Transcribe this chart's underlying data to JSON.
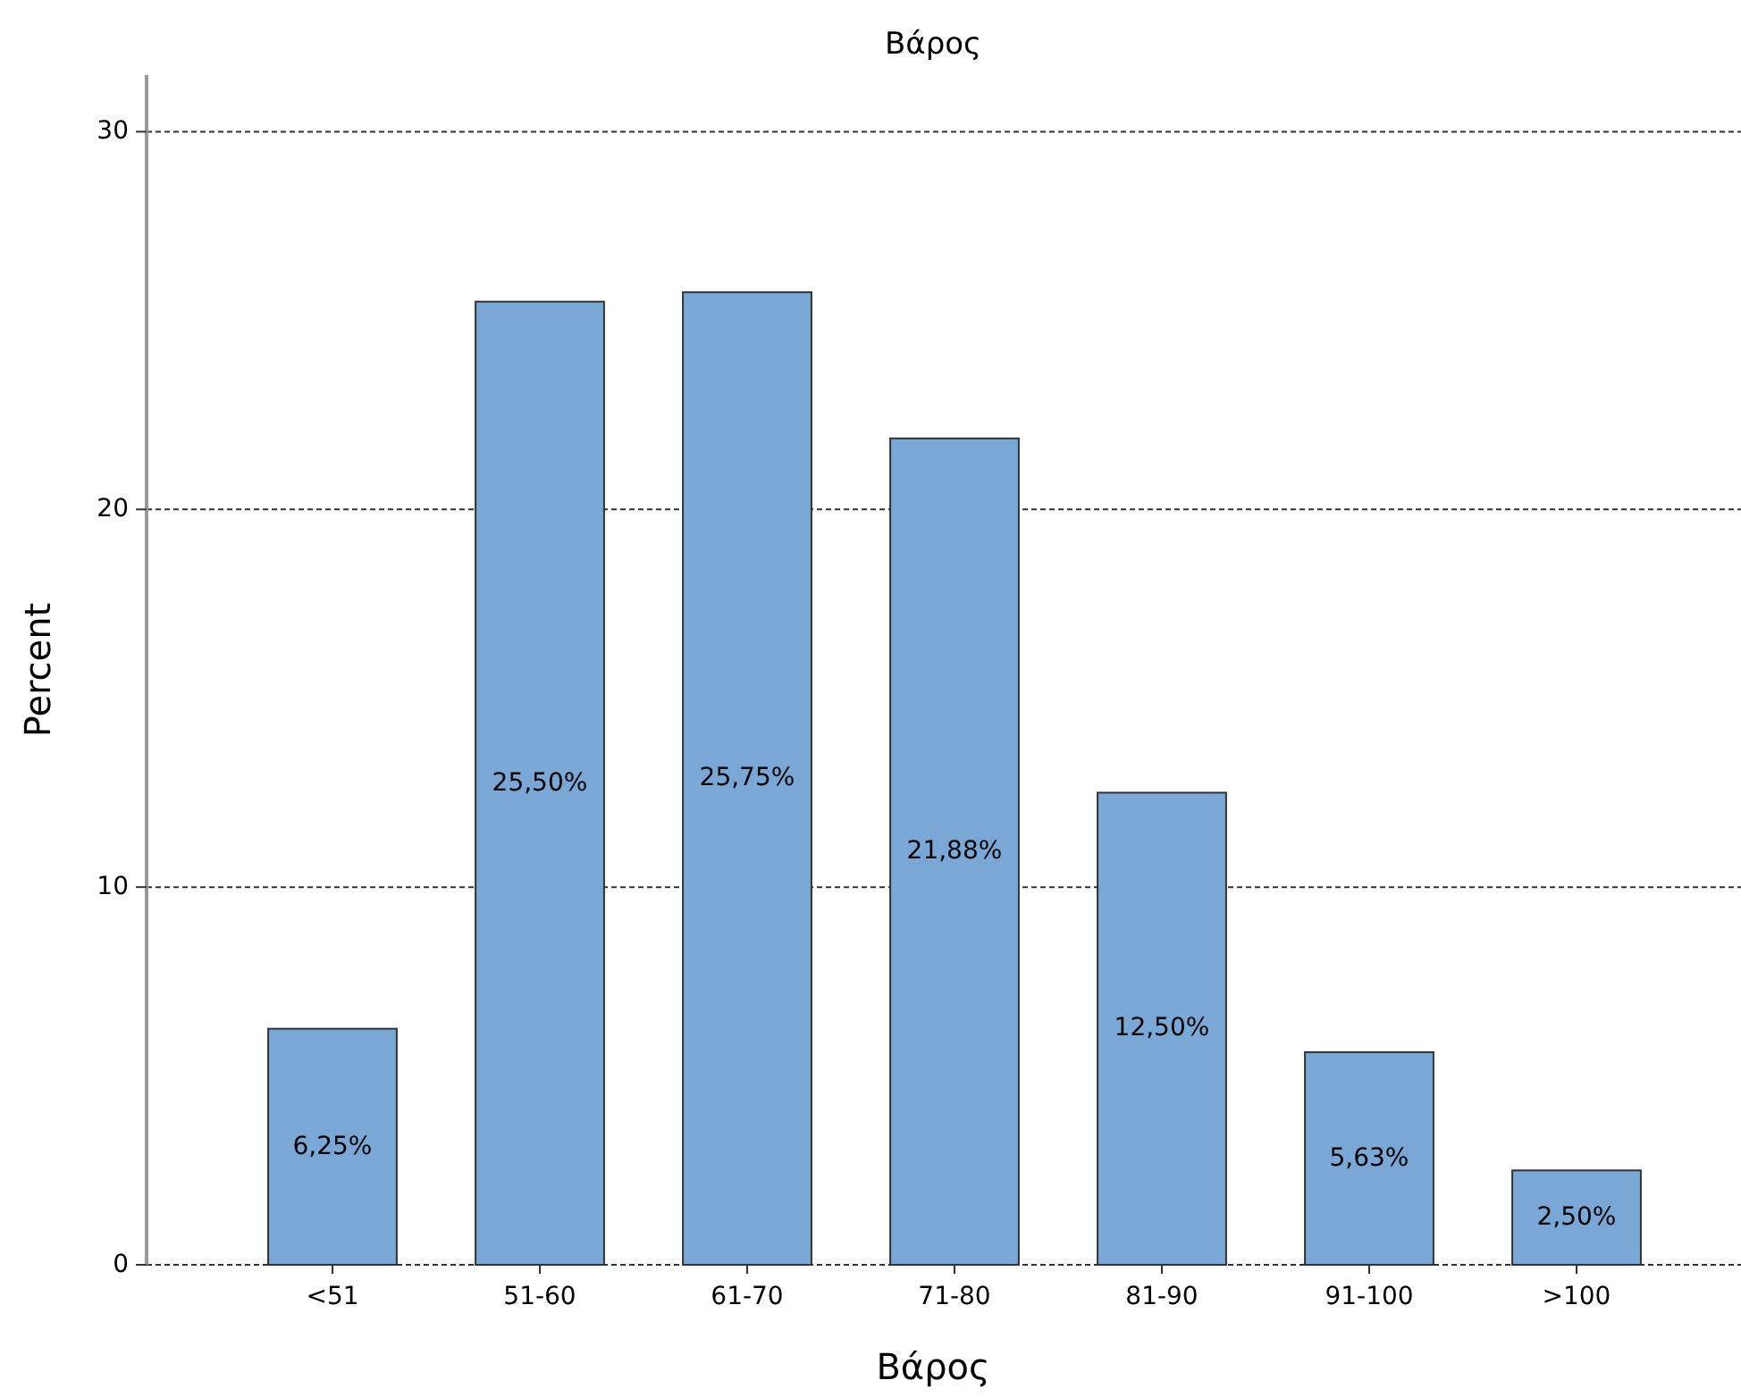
{
  "chart_data": {
    "type": "bar",
    "title": "Βάρος",
    "xlabel": "Βάρος",
    "ylabel": "Percent",
    "categories": [
      "<51",
      "51-60",
      "61-70",
      "71-80",
      "81-90",
      "91-100",
      ">100"
    ],
    "values": [
      6.25,
      25.5,
      25.75,
      21.88,
      12.5,
      5.63,
      2.5
    ],
    "value_labels": [
      "6,25%",
      "25,50%",
      "25,75%",
      "21,88%",
      "12,50%",
      "5,63%",
      "2,50%"
    ],
    "color": "#7aa7d6",
    "ylim": [
      0,
      31.5
    ],
    "yticks": [
      0,
      10,
      20,
      30
    ],
    "grid": "y"
  }
}
